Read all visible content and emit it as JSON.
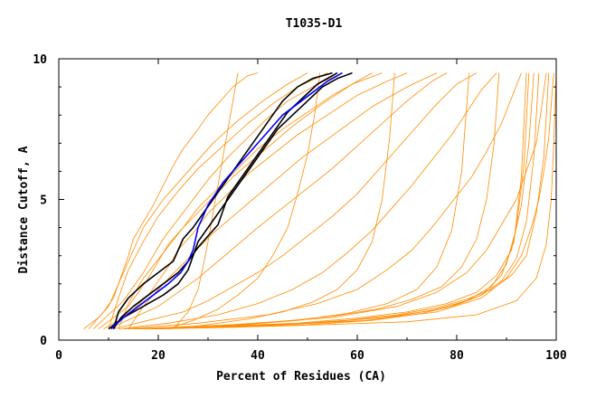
{
  "chart_data": {
    "type": "line",
    "title": "T1035-D1",
    "xlabel": "Percent of Residues (CA)",
    "ylabel": "Distance Cutoff, A",
    "xlim": [
      0,
      100
    ],
    "ylim": [
      0,
      10
    ],
    "x_ticks": [
      0,
      20,
      40,
      60,
      80,
      100
    ],
    "y_ticks": [
      0,
      5,
      10
    ],
    "grid": false,
    "legend": "none",
    "colors": {
      "background_models": "#ff8c00",
      "highlight_models": "#000000",
      "reference_model": "#0000ff",
      "axes": "#000000"
    },
    "series": [
      {
        "group": "background",
        "x": [
          5,
          8,
          10,
          11,
          12,
          13,
          14,
          15,
          16,
          17,
          19,
          21,
          24,
          27,
          31,
          36,
          41,
          46,
          50
        ],
        "y": [
          0.4,
          0.8,
          1.2,
          1.6,
          2.0,
          2.4,
          2.8,
          3.2,
          3.6,
          4.0,
          4.5,
          5.0,
          5.6,
          6.2,
          7.0,
          7.8,
          8.5,
          9.1,
          9.5
        ]
      },
      {
        "group": "background",
        "x": [
          6,
          9,
          11,
          12,
          13,
          14,
          15,
          17,
          19,
          21,
          23,
          25,
          28,
          30,
          33,
          35,
          38,
          40
        ],
        "y": [
          0.4,
          1.0,
          1.5,
          2.0,
          2.5,
          3.0,
          3.6,
          4.2,
          4.8,
          5.5,
          6.2,
          6.8,
          7.5,
          8.0,
          8.6,
          9.0,
          9.4,
          9.5
        ]
      },
      {
        "group": "background",
        "x": [
          7,
          10,
          13,
          15,
          17,
          19,
          21,
          24,
          27,
          30,
          34,
          38,
          42,
          46,
          52,
          57
        ],
        "y": [
          0.4,
          0.9,
          1.4,
          1.9,
          2.4,
          3.0,
          3.6,
          4.3,
          5.0,
          5.7,
          6.5,
          7.2,
          7.9,
          8.5,
          9.1,
          9.5
        ]
      },
      {
        "group": "background",
        "x": [
          8,
          11,
          14,
          16,
          18,
          20,
          22,
          25,
          28,
          32,
          36,
          40,
          45,
          50,
          55,
          60,
          63
        ],
        "y": [
          0.4,
          0.8,
          1.2,
          1.7,
          2.2,
          2.8,
          3.4,
          4.0,
          4.7,
          5.4,
          6.1,
          6.8,
          7.5,
          8.1,
          8.7,
          9.2,
          9.5
        ]
      },
      {
        "group": "background",
        "x": [
          9,
          12,
          15,
          18,
          20,
          22,
          24,
          27,
          30,
          34,
          38,
          43,
          48,
          54,
          60,
          66,
          70
        ],
        "y": [
          0.4,
          0.7,
          1.1,
          1.6,
          2.1,
          2.6,
          3.2,
          3.8,
          4.5,
          5.2,
          5.9,
          6.6,
          7.3,
          8.0,
          8.7,
          9.2,
          9.5
        ]
      },
      {
        "group": "background",
        "x": [
          10,
          15,
          20,
          24,
          28,
          32,
          36,
          40,
          45,
          50,
          55,
          60,
          65,
          70,
          75,
          78
        ],
        "y": [
          0.4,
          0.8,
          1.2,
          1.7,
          2.2,
          2.8,
          3.4,
          4.0,
          4.7,
          5.4,
          6.1,
          6.9,
          7.7,
          8.5,
          9.2,
          9.5
        ]
      },
      {
        "group": "background",
        "x": [
          11,
          18,
          25,
          30,
          35,
          40,
          45,
          50,
          55,
          60,
          64,
          68,
          72,
          76,
          80,
          84
        ],
        "y": [
          0.4,
          0.7,
          1.0,
          1.4,
          1.9,
          2.4,
          3.0,
          3.7,
          4.4,
          5.2,
          6.0,
          6.8,
          7.6,
          8.4,
          9.1,
          9.5
        ]
      },
      {
        "group": "background",
        "x": [
          12,
          22,
          32,
          40,
          47,
          53,
          58,
          63,
          67,
          71,
          75,
          79,
          82,
          85,
          88
        ],
        "y": [
          0.4,
          0.6,
          0.9,
          1.3,
          1.8,
          2.4,
          3.1,
          3.9,
          4.7,
          5.5,
          6.4,
          7.3,
          8.1,
          8.9,
          9.5
        ]
      },
      {
        "group": "background",
        "x": [
          13,
          28,
          42,
          52,
          60,
          66,
          71,
          75,
          79,
          83,
          86,
          89,
          91,
          93
        ],
        "y": [
          0.4,
          0.6,
          0.9,
          1.3,
          1.8,
          2.5,
          3.2,
          4.0,
          4.9,
          5.8,
          6.7,
          7.7,
          8.6,
          9.5
        ]
      },
      {
        "group": "background",
        "x": [
          14,
          35,
          55,
          68,
          76,
          82,
          86,
          89,
          92,
          94,
          96,
          97,
          98
        ],
        "y": [
          0.4,
          0.55,
          0.8,
          1.2,
          1.7,
          2.4,
          3.2,
          4.1,
          5.0,
          6.0,
          7.0,
          8.2,
          9.5
        ]
      },
      {
        "group": "background",
        "x": [
          15,
          40,
          62,
          76,
          85,
          90,
          93,
          95,
          96.5,
          97.5,
          98.5,
          99,
          99.5
        ],
        "y": [
          0.4,
          0.5,
          0.7,
          1.0,
          1.5,
          2.2,
          3.0,
          4.0,
          5.0,
          6.0,
          7.2,
          8.4,
          9.5
        ]
      },
      {
        "group": "background",
        "x": [
          16,
          45,
          70,
          84,
          92,
          96,
          98,
          99,
          99.5,
          100
        ],
        "y": [
          0.4,
          0.5,
          0.65,
          0.9,
          1.4,
          2.2,
          3.4,
          5.0,
          7.0,
          9.5
        ]
      },
      {
        "group": "background",
        "x": [
          17,
          30,
          45,
          58,
          68,
          76,
          82,
          87,
          91,
          94,
          96,
          97.5,
          98.5
        ],
        "y": [
          0.4,
          0.45,
          0.55,
          0.7,
          0.9,
          1.15,
          1.45,
          1.8,
          2.3,
          3.0,
          4.5,
          6.5,
          9.5
        ]
      },
      {
        "group": "background",
        "x": [
          18,
          34,
          50,
          63,
          73,
          80,
          85,
          89,
          92,
          94,
          95.5,
          96.5
        ],
        "y": [
          0.4,
          0.45,
          0.55,
          0.7,
          0.95,
          1.25,
          1.6,
          2.1,
          2.9,
          4.2,
          6.5,
          9.5
        ]
      },
      {
        "group": "background",
        "x": [
          18,
          33,
          48,
          60,
          70,
          78,
          84,
          88,
          91,
          93,
          94.5,
          95.5
        ],
        "y": [
          0.4,
          0.5,
          0.6,
          0.78,
          1.0,
          1.3,
          1.7,
          2.3,
          3.2,
          4.8,
          7.0,
          9.5
        ]
      },
      {
        "group": "background",
        "x": [
          19,
          36,
          52,
          65,
          75,
          82,
          87,
          90,
          92,
          93.5,
          94.5
        ],
        "y": [
          0.4,
          0.5,
          0.62,
          0.8,
          1.05,
          1.4,
          1.9,
          2.7,
          4.0,
          6.2,
          9.5
        ]
      },
      {
        "group": "background",
        "x": [
          20,
          38,
          55,
          68,
          78,
          85,
          89,
          91.5,
          93,
          94
        ],
        "y": [
          0.4,
          0.5,
          0.65,
          0.85,
          1.15,
          1.6,
          2.3,
          3.5,
          5.8,
          9.5
        ]
      },
      {
        "group": "background",
        "x": [
          20,
          32,
          44,
          55,
          64,
          71,
          77,
          81,
          84,
          86,
          87.5,
          88.5
        ],
        "y": [
          0.4,
          0.5,
          0.65,
          0.85,
          1.1,
          1.45,
          1.9,
          2.6,
          3.6,
          5.0,
          7.0,
          9.5
        ]
      },
      {
        "group": "background",
        "x": [
          21,
          35,
          48,
          58,
          66,
          72,
          76,
          79,
          81,
          82.5
        ],
        "y": [
          0.4,
          0.52,
          0.7,
          0.95,
          1.3,
          1.8,
          2.6,
          3.9,
          6.0,
          9.5
        ]
      },
      {
        "group": "background",
        "x": [
          22,
          30,
          38,
          45,
          51,
          56,
          60,
          63,
          65,
          66.5,
          67.5
        ],
        "y": [
          0.4,
          0.55,
          0.75,
          1.0,
          1.35,
          1.8,
          2.5,
          3.5,
          5.0,
          7.2,
          9.5
        ]
      },
      {
        "group": "background",
        "x": [
          22,
          27,
          32,
          36,
          40,
          43,
          46,
          48,
          50,
          51.5,
          52.5
        ],
        "y": [
          0.4,
          0.7,
          1.1,
          1.6,
          2.2,
          3.0,
          4.0,
          5.2,
          6.6,
          8.1,
          9.5
        ]
      },
      {
        "group": "background",
        "x": [
          23,
          26,
          28,
          29,
          30,
          31,
          32,
          33,
          34,
          35,
          36
        ],
        "y": [
          0.4,
          1.0,
          1.8,
          2.6,
          3.5,
          4.5,
          5.5,
          6.5,
          7.5,
          8.5,
          9.5
        ]
      },
      {
        "group": "background",
        "x": [
          10,
          12,
          14,
          17,
          20,
          24,
          28,
          33,
          38,
          43,
          48,
          54
        ],
        "y": [
          0.4,
          1.5,
          2.5,
          3.5,
          4.4,
          5.3,
          6.1,
          6.9,
          7.7,
          8.4,
          9.0,
          9.5
        ]
      },
      {
        "group": "background",
        "x": [
          12,
          14,
          17,
          21,
          25,
          30,
          35,
          41,
          47,
          53,
          59,
          65
        ],
        "y": [
          0.4,
          1.3,
          2.2,
          3.1,
          4.0,
          4.9,
          5.8,
          6.7,
          7.6,
          8.4,
          9.1,
          9.5
        ]
      },
      {
        "group": "background",
        "x": [
          14,
          17,
          21,
          26,
          31,
          37,
          43,
          49,
          56,
          63,
          70,
          76
        ],
        "y": [
          0.4,
          1.2,
          2.0,
          2.9,
          3.8,
          4.7,
          5.6,
          6.5,
          7.4,
          8.3,
          9.0,
          9.5
        ]
      },
      {
        "group": "highlight",
        "x": [
          10,
          13,
          17,
          21,
          24,
          26,
          27,
          28,
          30,
          32,
          34,
          36,
          38,
          40,
          42,
          44,
          47,
          50,
          53,
          56,
          59
        ],
        "y": [
          0.4,
          0.8,
          1.2,
          1.6,
          2.0,
          2.5,
          3.0,
          3.5,
          4.0,
          4.5,
          5.0,
          5.5,
          6.0,
          6.5,
          7.0,
          7.5,
          8.0,
          8.5,
          9.0,
          9.3,
          9.5
        ]
      },
      {
        "group": "highlight",
        "x": [
          11,
          12,
          14,
          17,
          20,
          23,
          24,
          25,
          27,
          29,
          31,
          33,
          35,
          37,
          39,
          41,
          43,
          45,
          48,
          51,
          55
        ],
        "y": [
          0.4,
          1.0,
          1.5,
          2.0,
          2.4,
          2.8,
          3.2,
          3.6,
          4.0,
          4.5,
          5.0,
          5.5,
          6.0,
          6.5,
          7.0,
          7.5,
          8.0,
          8.5,
          9.0,
          9.3,
          9.5
        ]
      },
      {
        "group": "highlight",
        "x": [
          11,
          12.5,
          15,
          18,
          21,
          24,
          26,
          28,
          30,
          32,
          33,
          34,
          36,
          38,
          40,
          42,
          44,
          46,
          49,
          52,
          56
        ],
        "y": [
          0.4,
          0.8,
          1.2,
          1.6,
          2.0,
          2.4,
          2.8,
          3.3,
          3.7,
          4.1,
          4.6,
          5.1,
          5.6,
          6.1,
          6.6,
          7.1,
          7.6,
          8.1,
          8.6,
          9.1,
          9.5
        ]
      },
      {
        "group": "reference",
        "x": [
          10.5,
          13,
          16,
          19,
          22,
          24.5,
          26,
          27,
          27.5,
          28,
          29,
          30,
          31.5,
          33,
          35,
          37,
          39,
          41,
          43,
          45,
          48,
          51,
          54,
          57
        ],
        "y": [
          0.4,
          0.8,
          1.2,
          1.6,
          2.0,
          2.4,
          2.8,
          3.2,
          3.6,
          4.0,
          4.4,
          4.8,
          5.2,
          5.6,
          6.0,
          6.4,
          6.8,
          7.2,
          7.6,
          8.0,
          8.4,
          8.8,
          9.2,
          9.5
        ]
      }
    ]
  }
}
